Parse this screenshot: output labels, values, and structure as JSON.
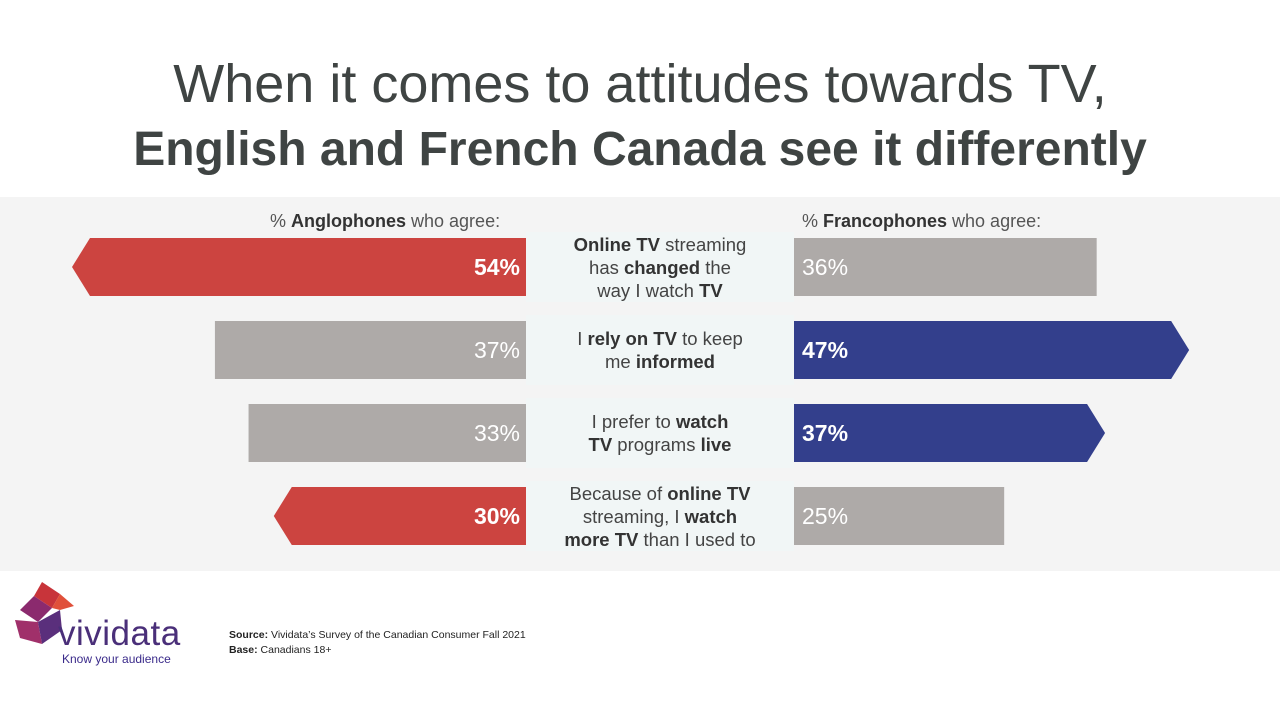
{
  "title": {
    "line1": "When it comes to attitudes towards TV,",
    "line2": "English and French Canada see it differently"
  },
  "colors": {
    "anglo_highlight": "#cc4440",
    "franco_highlight": "#333f8c",
    "neutral": "#aeaaa8"
  },
  "column_headers": {
    "left": {
      "prefix": "% ",
      "bold": "Anglophones",
      "suffix": " who agree:"
    },
    "right": {
      "prefix": "% ",
      "bold": "Francophones",
      "suffix": " who agree:"
    }
  },
  "statements": [
    [
      {
        "t": "Online ",
        "b": true
      },
      {
        "t": "TV",
        "b": true
      },
      {
        "t": " streaming",
        "b": false
      },
      {
        "br": true
      },
      {
        "t": "has ",
        "b": false
      },
      {
        "t": "changed",
        "b": true
      },
      {
        "t": " the",
        "b": false
      },
      {
        "br": true
      },
      {
        "t": "way I watch ",
        "b": false
      },
      {
        "t": "TV",
        "b": true
      }
    ],
    [
      {
        "t": "I ",
        "b": false
      },
      {
        "t": "rely on TV",
        "b": true
      },
      {
        "t": " to keep",
        "b": false
      },
      {
        "br": true
      },
      {
        "t": "me ",
        "b": false
      },
      {
        "t": "informed",
        "b": true
      }
    ],
    [
      {
        "t": "I prefer to ",
        "b": false
      },
      {
        "t": "watch",
        "b": true
      },
      {
        "br": true
      },
      {
        "t": "TV",
        "b": true
      },
      {
        "t": " programs ",
        "b": false
      },
      {
        "t": "live",
        "b": true
      }
    ],
    [
      {
        "t": "Because of ",
        "b": false
      },
      {
        "t": "online TV",
        "b": true
      },
      {
        "br": true
      },
      {
        "t": "streaming, I ",
        "b": false
      },
      {
        "t": "watch",
        "b": true
      },
      {
        "br": true
      },
      {
        "t": "more TV",
        "b": true
      },
      {
        "t": " than I used to",
        "b": false
      }
    ]
  ],
  "chart_data": {
    "type": "bar",
    "orientation": "diverging-horizontal",
    "categories": [
      "Online TV streaming has changed the way I watch TV",
      "I rely on TV to keep me informed",
      "I prefer to watch TV programs live",
      "Because of online TV streaming, I watch more TV than I used to"
    ],
    "series": [
      {
        "name": "% Anglophones who agree",
        "side": "left",
        "values": [
          54,
          37,
          33,
          30
        ],
        "labels": [
          "54%",
          "37%",
          "33%",
          "30%"
        ],
        "highlight": [
          true,
          false,
          false,
          true
        ]
      },
      {
        "name": "% Francophones who agree",
        "side": "right",
        "values": [
          36,
          47,
          37,
          25
        ],
        "labels": [
          "36%",
          "47%",
          "37%",
          "25%"
        ],
        "highlight": [
          false,
          true,
          true,
          false
        ]
      }
    ],
    "xlim": [
      0,
      60
    ]
  },
  "logo": {
    "brand": "vividata",
    "tagline": "Know your audience"
  },
  "footer": {
    "source_label": "Source:",
    "source_text": " Vividata’s Survey of the Canadian Consumer Fall 2021",
    "base_label": "Base:",
    "base_text": " Canadians 18+"
  }
}
